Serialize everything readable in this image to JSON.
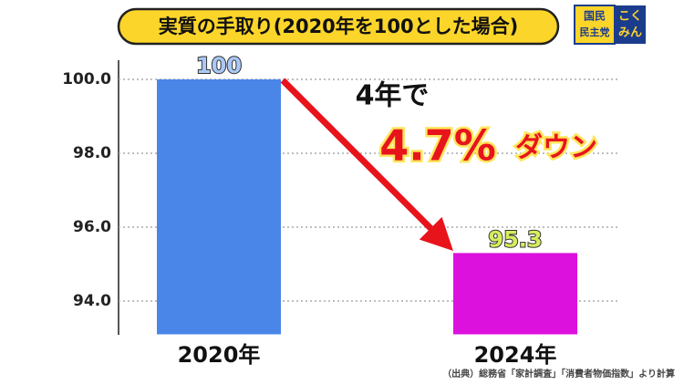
{
  "chart_data": {
    "type": "bar",
    "title": "実質の手取り(2020年を100とした場合)",
    "categories": [
      "2020年",
      "2024年"
    ],
    "values": [
      100,
      95.3
    ],
    "colors": [
      "#4a86e8",
      "#dd11dd"
    ],
    "label_colors": [
      "#a9c8f5",
      "#d6ee5c"
    ],
    "ylim": [
      93.1,
      100.5
    ],
    "yticks": [
      {
        "value": 94,
        "label": "94.0"
      },
      {
        "value": 96,
        "label": "96.0"
      },
      {
        "value": 98,
        "label": "98.0"
      },
      {
        "value": 100,
        "label": "100.0"
      }
    ],
    "grid": true,
    "annotations": [
      "4年で",
      "4.7%",
      "ダウン"
    ],
    "source": "（出典）総務省「家計調査」「消費者物価指数」より計算"
  },
  "logo": {
    "party": [
      "国民",
      "民主党"
    ],
    "name": [
      "こく",
      "みん"
    ]
  }
}
